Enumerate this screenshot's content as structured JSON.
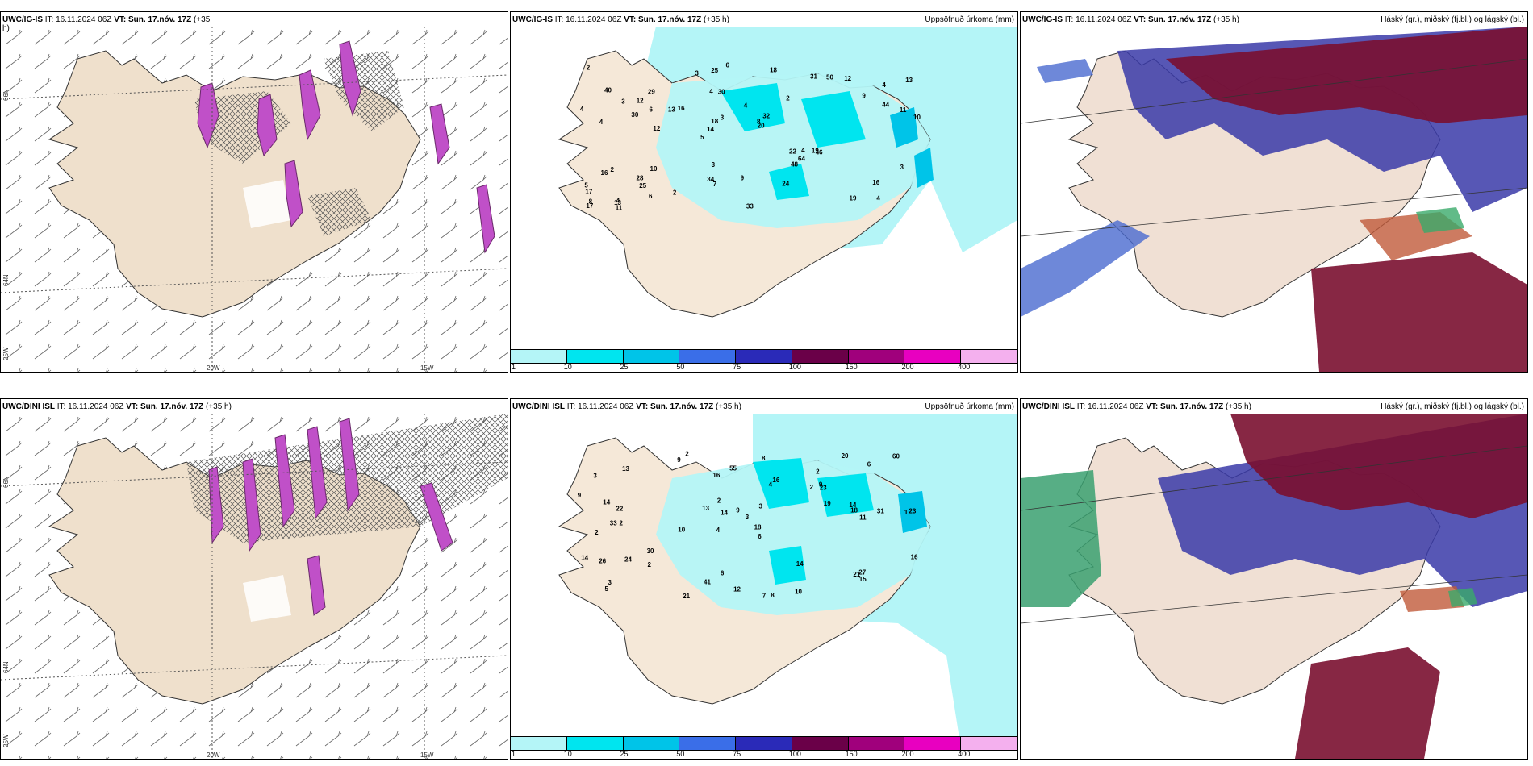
{
  "panels": {
    "top_left": {
      "model": "UWC/IG-IS",
      "it_label": "IT:",
      "it": "16.11.2024 06Z",
      "vt_label": "VT:",
      "vt": "Sun. 17.nóv. 17Z",
      "lead": "(+35",
      "lead2": "h)"
    },
    "top_mid": {
      "model": "UWC/IG-IS",
      "it_label": "IT:",
      "it": "16.11.2024 06Z",
      "vt_label": "VT:",
      "vt": "Sun. 17.nóv. 17Z",
      "lead": "(+35 h)",
      "field": "Uppsöfnuð úrkoma (mm)"
    },
    "top_right": {
      "model": "UWC/IG-IS",
      "it_label": "IT:",
      "it": "16.11.2024 06Z",
      "vt_label": "VT:",
      "vt": "Sun. 17.nóv. 17Z",
      "lead": "(+35 h)",
      "field": "Háský (gr.), miðský (fj.bl.) og lágský (bl.)"
    },
    "bot_left": {
      "model": "UWC/DINI ISL",
      "it_label": "IT:",
      "it": "16.11.2024 06Z",
      "vt_label": "VT:",
      "vt": "Sun. 17.nóv. 17Z",
      "lead": "(+35 h)"
    },
    "bot_mid": {
      "model": "UWC/DINI ISL",
      "it_label": "IT:",
      "it": "16.11.2024 06Z",
      "vt_label": "VT:",
      "vt": "Sun. 17.nóv. 17Z",
      "lead": "(+35 h)",
      "field": "Uppsöfnuð úrkoma (mm)"
    },
    "bot_right": {
      "model": "UWC/DINI ISL",
      "it_label": "IT:",
      "it": "16.11.2024 06Z",
      "vt_label": "VT:",
      "vt": "Sun. 17.nóv. 17Z",
      "lead": "(+35 h)",
      "field": "Háský (gr.), miðský (fj.bl.) og lágský (bl.)"
    }
  },
  "axes": {
    "lat1": "66N",
    "lat2": "64N",
    "lon_w1": "25W",
    "lon1": "20W",
    "lon2": "15W"
  },
  "legend": {
    "ticks": [
      "1",
      "10",
      "25",
      "50",
      "75",
      "100",
      "150",
      "200",
      "400"
    ],
    "colors": [
      "#b4f5f7",
      "#00e5ef",
      "#00c4e8",
      "#3a6ee8",
      "#2a2ab8",
      "#6a0048",
      "#a0007c",
      "#e800c0",
      "#f4b0ee"
    ]
  },
  "precip_labels_top": [
    "4",
    "4",
    "4",
    "5",
    "2",
    "4",
    "4",
    "4",
    "2",
    "16",
    "17",
    "25",
    "30",
    "32",
    "46",
    "40",
    "25",
    "10",
    "22",
    "44",
    "14",
    "34",
    "18",
    "29",
    "31",
    "10",
    "19",
    "16",
    "19",
    "33",
    "13",
    "30",
    "48",
    "6",
    "11",
    "8",
    "8",
    "7",
    "20",
    "16",
    "9",
    "13",
    "64",
    "24",
    "28",
    "11",
    "17",
    "9",
    "12",
    "6",
    "12",
    "4",
    "12",
    "50",
    "13",
    "18",
    "3",
    "3",
    "3",
    "3",
    "2",
    "4",
    "6",
    "5",
    "2",
    "3"
  ],
  "precip_labels_bot": [
    "2",
    "2",
    "1",
    "4",
    "6",
    "2",
    "3",
    "2",
    "2",
    "4",
    "3",
    "5",
    "9",
    "10",
    "7",
    "8",
    "6",
    "20",
    "19",
    "30",
    "22",
    "33",
    "23",
    "31",
    "14",
    "14",
    "14",
    "18",
    "27",
    "26",
    "21",
    "16",
    "24",
    "13",
    "14",
    "16",
    "14",
    "41",
    "60",
    "55",
    "3",
    "21",
    "10",
    "13",
    "12",
    "23",
    "15",
    "9",
    "9",
    "18",
    "16",
    "11",
    "3",
    "6",
    "8",
    "2",
    "2",
    "9"
  ]
}
